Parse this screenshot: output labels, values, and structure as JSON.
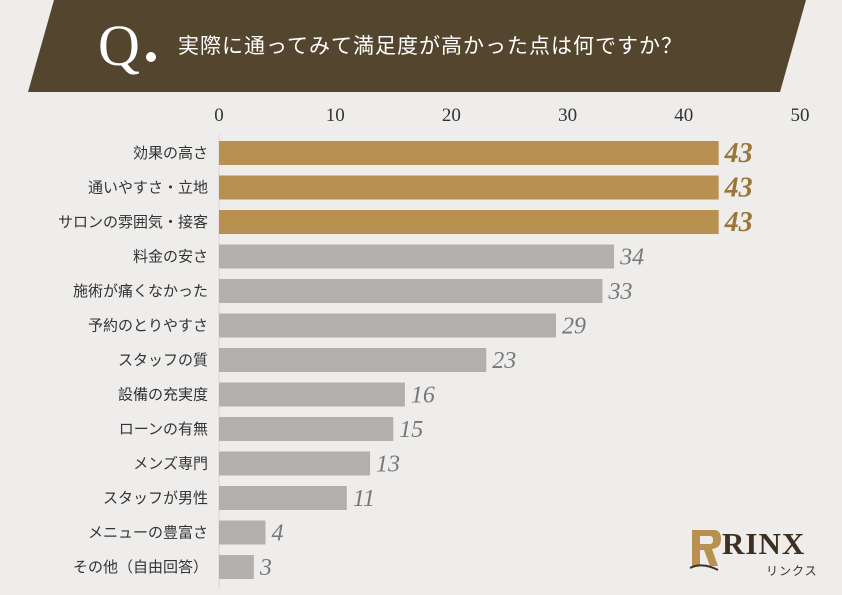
{
  "header": {
    "q_letter": "Q",
    "question": "実際に通ってみて満足度が高かった点は何ですか？"
  },
  "colors": {
    "banner": "#54452f",
    "highlight": "#b89150",
    "normal": "#b2afaf",
    "highlight_label": "#9a7638",
    "normal_label": "#777777"
  },
  "chart_data": {
    "type": "bar",
    "orientation": "horizontal",
    "title": "実際に通ってみて満足度が高かった点は何ですか？",
    "xlim": [
      0,
      50
    ],
    "xticks": [
      0,
      10,
      20,
      30,
      40,
      50
    ],
    "categories": [
      "効果の高さ",
      "通いやすさ・立地",
      "サロンの雰囲気・接客",
      "料金の安さ",
      "施術が痛くなかった",
      "予約のとりやすさ",
      "スタッフの質",
      "設備の充実度",
      "ローンの有無",
      "メンズ専門",
      "スタッフが男性",
      "メニューの豊富さ",
      "その他（自由回答）"
    ],
    "values": [
      43,
      43,
      43,
      34,
      33,
      29,
      23,
      16,
      15,
      13,
      11,
      4,
      3
    ],
    "highlighted": [
      true,
      true,
      true,
      false,
      false,
      false,
      false,
      false,
      false,
      false,
      false,
      false,
      false
    ]
  },
  "logo": {
    "text": "RINX",
    "subtext": "リンクス"
  }
}
